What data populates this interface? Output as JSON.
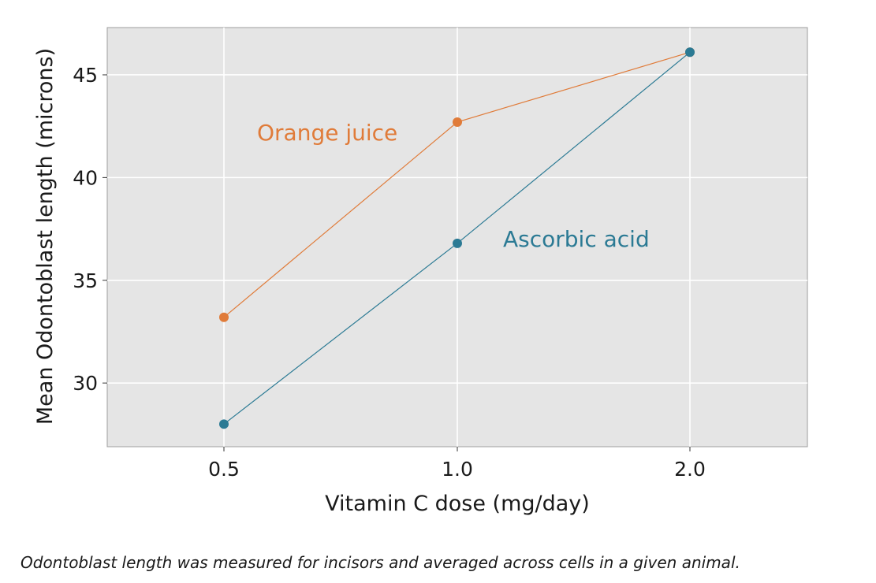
{
  "chart_data": {
    "type": "line",
    "categories": [
      "0.5",
      "1.0",
      "2.0"
    ],
    "series": [
      {
        "name": "Orange juice",
        "color": "#e07b39",
        "values": [
          33.2,
          42.7,
          46.1
        ]
      },
      {
        "name": "Ascorbic acid",
        "color": "#2b7a94",
        "values": [
          28.0,
          36.8,
          46.1
        ]
      }
    ],
    "title": "",
    "xlabel": "Vitamin C dose (mg/day)",
    "ylabel": "Mean Odontoblast length (microns)",
    "ylim": [
      26.9,
      47.3
    ],
    "yticks": [
      "30",
      "35",
      "40",
      "45"
    ],
    "grid": true,
    "legend": "direct labels on lines",
    "panel_background": "#e5e5e5",
    "grid_color": "#ffffff"
  },
  "caption": "Odontoblast length was measured for incisors and averaged across cells in a given animal."
}
